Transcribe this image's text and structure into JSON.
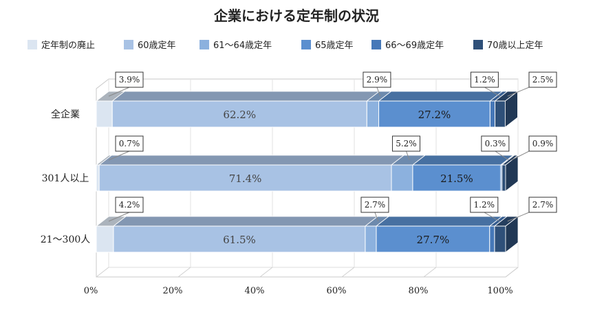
{
  "chart_data": {
    "type": "bar",
    "stacked": true,
    "orientation": "horizontal",
    "percent": true,
    "title": "企業における定年制の状況",
    "categories": [
      "全企業",
      "301人以上",
      "21～300人"
    ],
    "series": [
      {
        "name": "定年制の廃止",
        "values": [
          3.9,
          0.7,
          4.2
        ],
        "color": "#dbe5f1"
      },
      {
        "name": "60歳定年",
        "values": [
          62.2,
          71.4,
          61.5
        ],
        "color": "#a8c2e4"
      },
      {
        "name": "61～64歳定年",
        "values": [
          2.9,
          5.2,
          2.7
        ],
        "color": "#8cb1de"
      },
      {
        "name": "65歳定年",
        "values": [
          27.2,
          21.5,
          27.7
        ],
        "color": "#5b8fcf"
      },
      {
        "name": "66～69歳定年",
        "values": [
          1.2,
          0.3,
          1.2
        ],
        "color": "#4678b8"
      },
      {
        "name": "70歳以上定年",
        "values": [
          2.5,
          0.9,
          2.7
        ],
        "color": "#2f5079"
      }
    ],
    "value_labels": [
      [
        "3.9%",
        "62.2%",
        "2.9%",
        "27.2%",
        "1.2%",
        "2.5%"
      ],
      [
        "0.7%",
        "71.4%",
        "5.2%",
        "21.5%",
        "0.3%",
        "0.9%"
      ],
      [
        "4.2%",
        "61.5%",
        "2.7%",
        "27.7%",
        "1.2%",
        "2.7%"
      ]
    ],
    "xaxis": {
      "ticks": [
        "0%",
        "20%",
        "40%",
        "60%",
        "80%",
        "100%"
      ],
      "range": [
        0,
        100
      ]
    },
    "legend_position": "top",
    "grid": true,
    "style": "3d"
  }
}
